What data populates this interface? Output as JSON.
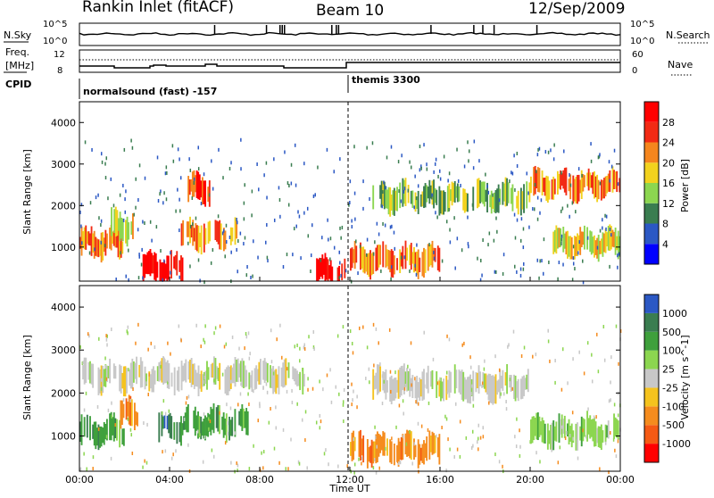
{
  "header": {
    "station": "Rankin Inlet (fitACF)",
    "beam": "Beam 10",
    "date": "12/Sep/2009"
  },
  "panels": {
    "nsky": {
      "label": "N.Sky",
      "right_label": "N.Search",
      "ticks_left": [
        "10^5",
        "10^0"
      ],
      "ticks_right": [
        "10^5",
        "10^0"
      ]
    },
    "freq": {
      "label_top": "Freq.",
      "label_bottom": "[MHz]",
      "right_label": "Nave",
      "ticks_left": [
        "12",
        "8"
      ],
      "ticks_right": [
        "60",
        "0"
      ]
    },
    "cpid": {
      "label": "CPID",
      "programs": [
        "normalsound (fast) -157",
        "themis 3300"
      ]
    }
  },
  "chart_data": [
    {
      "type": "heatmap",
      "title": "",
      "xlabel": "",
      "ylabel": "Slant Range [km]",
      "xlim": [
        0,
        24
      ],
      "ylim": [
        180,
        4500
      ],
      "x_ticks": [
        "00:00",
        "04:00",
        "08:00",
        "12:00",
        "16:00",
        "20:00",
        "00:00"
      ],
      "y_ticks": [
        "1000",
        "2000",
        "3000",
        "4000"
      ],
      "colorbar": {
        "label": "Power [dB]",
        "ticks": [
          "28",
          "24",
          "20",
          "16",
          "12",
          "8",
          "4"
        ],
        "colors": [
          "#0000ff",
          "#2b58c4",
          "#3a7d50",
          "#8cd650",
          "#f2d21e",
          "#f5861e",
          "#f22a14",
          "#ff0000"
        ]
      },
      "features": [
        {
          "t_start": 0.0,
          "t_end": 2.0,
          "range_km": 1100,
          "value_db": 20
        },
        {
          "t_start": 1.2,
          "t_end": 2.4,
          "range_km": 1500,
          "value_db": 14
        },
        {
          "t_start": 2.8,
          "t_end": 4.6,
          "range_km": 500,
          "value_db": 28
        },
        {
          "t_start": 4.5,
          "t_end": 7.0,
          "range_km": 1300,
          "value_db": 20
        },
        {
          "t_start": 4.8,
          "t_end": 5.8,
          "range_km": 2400,
          "value_db": 24
        },
        {
          "t_start": 10.5,
          "t_end": 11.8,
          "range_km": 400,
          "value_db": 28
        },
        {
          "t_start": 12.0,
          "t_end": 16.0,
          "range_km": 700,
          "value_db": 20
        },
        {
          "t_start": 13.0,
          "t_end": 20.0,
          "range_km": 2200,
          "value_db": 12
        },
        {
          "t_start": 20.0,
          "t_end": 24.0,
          "range_km": 2500,
          "value_db": 20
        },
        {
          "t_start": 21.0,
          "t_end": 24.0,
          "range_km": 1100,
          "value_db": 16
        }
      ]
    },
    {
      "type": "heatmap",
      "title": "",
      "xlabel": "Time UT",
      "ylabel": "Slant Range [km]",
      "xlim": [
        0,
        24
      ],
      "ylim": [
        180,
        4500
      ],
      "x_ticks": [
        "00:00",
        "04:00",
        "08:00",
        "12:00",
        "16:00",
        "20:00",
        "00:00"
      ],
      "y_ticks": [
        "1000",
        "2000",
        "3000",
        "4000"
      ],
      "colorbar": {
        "label": "Velocity [m s^-1]",
        "ticks": [
          "1000",
          "500",
          "100",
          "25",
          "-25",
          "-100",
          "-500",
          "-1000"
        ],
        "colors": [
          "#ff0000",
          "#f55a14",
          "#f58c1e",
          "#f5c31e",
          "#c8c8c8",
          "#8cd650",
          "#3fa03c",
          "#3a7d50",
          "#2b58c4"
        ]
      },
      "features": [
        {
          "t_start": 0.0,
          "t_end": 2.0,
          "range_km": 1100,
          "value_ms": 200
        },
        {
          "t_start": 1.8,
          "t_end": 2.6,
          "range_km": 1500,
          "value_ms": -400
        },
        {
          "t_start": 3.5,
          "t_end": 4.6,
          "range_km": 1200,
          "value_ms": 800
        },
        {
          "t_start": 4.6,
          "t_end": 7.5,
          "range_km": 1300,
          "value_ms": 300
        },
        {
          "t_start": 0.0,
          "t_end": 10.0,
          "range_km": 2400,
          "value_ms": 0
        },
        {
          "t_start": 12.0,
          "t_end": 16.0,
          "range_km": 700,
          "value_ms": -300
        },
        {
          "t_start": 13.0,
          "t_end": 20.0,
          "range_km": 2200,
          "value_ms": 0
        },
        {
          "t_start": 20.0,
          "t_end": 24.0,
          "range_km": 1100,
          "value_ms": 80
        }
      ]
    }
  ]
}
